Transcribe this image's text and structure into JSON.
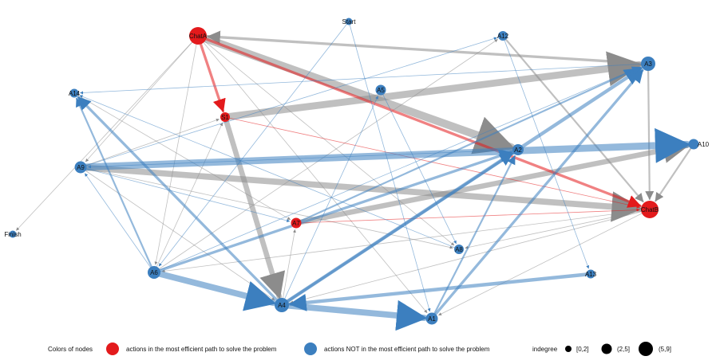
{
  "colors": {
    "efficient": "#e31a1c",
    "not_efficient": "#3c7fbf",
    "edge_grey": "#8c8c8c",
    "edge_blue": "#3c7fbf",
    "edge_red": "#e31a1c",
    "degree_marker": "#000000"
  },
  "nodes": [
    {
      "id": "Start",
      "label": "Start",
      "type": "not_efficient"
    },
    {
      "id": "ChatA",
      "label": "ChatA",
      "type": "efficient"
    },
    {
      "id": "A12",
      "label": "A12",
      "type": "not_efficient"
    },
    {
      "id": "A3",
      "label": "A3",
      "type": "not_efficient"
    },
    {
      "id": "A14",
      "label": "A14",
      "type": "not_efficient"
    },
    {
      "id": "A5",
      "label": "A5",
      "type": "not_efficient"
    },
    {
      "id": "S1",
      "label": "S1",
      "type": "efficient"
    },
    {
      "id": "A2",
      "label": "A2",
      "type": "not_efficient"
    },
    {
      "id": "A10",
      "label": "A10",
      "type": "not_efficient"
    },
    {
      "id": "A9",
      "label": "A9",
      "type": "not_efficient"
    },
    {
      "id": "ChatB",
      "label": "ChatB",
      "type": "efficient"
    },
    {
      "id": "A7",
      "label": "A7",
      "type": "efficient"
    },
    {
      "id": "Finish",
      "label": "Finish",
      "type": "not_efficient"
    },
    {
      "id": "A8",
      "label": "A8",
      "type": "not_efficient"
    },
    {
      "id": "A6",
      "label": "A6",
      "type": "not_efficient"
    },
    {
      "id": "A13",
      "label": "A13",
      "type": "not_efficient"
    },
    {
      "id": "A4",
      "label": "A4",
      "type": "not_efficient"
    },
    {
      "id": "A1",
      "label": "A1",
      "type": "not_efficient"
    }
  ],
  "edges": [
    {
      "from": "ChatA",
      "to": "A2",
      "color": "grey",
      "weight": 9
    },
    {
      "from": "S1",
      "to": "A3",
      "color": "grey",
      "weight": 8
    },
    {
      "from": "S1",
      "to": "A4",
      "color": "grey",
      "weight": 6
    },
    {
      "from": "A9",
      "to": "ChatB",
      "color": "grey",
      "weight": 7
    },
    {
      "from": "A7",
      "to": "A10",
      "color": "grey",
      "weight": 6
    },
    {
      "from": "A3",
      "to": "ChatA",
      "color": "grey",
      "weight": 3
    },
    {
      "from": "ChatB",
      "to": "A6",
      "color": "grey",
      "weight": 1
    },
    {
      "from": "ChatA",
      "to": "Finish",
      "color": "grey",
      "weight": 1
    },
    {
      "from": "A10",
      "to": "ChatB",
      "color": "grey",
      "weight": 2
    },
    {
      "from": "A3",
      "to": "ChatB",
      "color": "grey",
      "weight": 2
    },
    {
      "from": "A12",
      "to": "ChatB",
      "color": "grey",
      "weight": 2
    },
    {
      "from": "ChatA",
      "to": "A6",
      "color": "grey",
      "weight": 1
    },
    {
      "from": "ChatA",
      "to": "A8",
      "color": "grey",
      "weight": 1
    },
    {
      "from": "ChatA",
      "to": "A9",
      "color": "grey",
      "weight": 1
    },
    {
      "from": "ChatA",
      "to": "A1",
      "color": "grey",
      "weight": 1
    },
    {
      "from": "A9",
      "to": "A4",
      "color": "grey",
      "weight": 1
    },
    {
      "from": "A9",
      "to": "A8",
      "color": "grey",
      "weight": 1
    },
    {
      "from": "A6",
      "to": "S1",
      "color": "grey",
      "weight": 1
    },
    {
      "from": "ChatB",
      "to": "A8",
      "color": "grey",
      "weight": 1
    },
    {
      "from": "ChatB",
      "to": "A4",
      "color": "grey",
      "weight": 1
    },
    {
      "from": "ChatB",
      "to": "A1",
      "color": "grey",
      "weight": 1
    },
    {
      "from": "A14",
      "to": "A7",
      "color": "grey",
      "weight": 1
    },
    {
      "from": "A4",
      "to": "A7",
      "color": "grey",
      "weight": 1
    },
    {
      "from": "A6",
      "to": "A12",
      "color": "grey",
      "weight": 1
    },
    {
      "from": "A9",
      "to": "S1",
      "color": "grey",
      "weight": 1
    },
    {
      "from": "ChatA",
      "to": "S1",
      "color": "red",
      "weight": 3
    },
    {
      "from": "ChatA",
      "to": "ChatB",
      "color": "red",
      "weight": 3
    },
    {
      "from": "S1",
      "to": "ChatB",
      "color": "red",
      "weight": 1
    },
    {
      "from": "A7",
      "to": "ChatB",
      "color": "red",
      "weight": 1
    },
    {
      "from": "A9",
      "to": "A10",
      "color": "blue",
      "weight": 8
    },
    {
      "from": "A6",
      "to": "A4",
      "color": "blue",
      "weight": 7
    },
    {
      "from": "A4",
      "to": "A1",
      "color": "blue",
      "weight": 7
    },
    {
      "from": "A13",
      "to": "A4",
      "color": "blue",
      "weight": 4
    },
    {
      "from": "A4",
      "to": "A3",
      "color": "blue",
      "weight": 4
    },
    {
      "from": "A1",
      "to": "A3",
      "color": "blue",
      "weight": 3
    },
    {
      "from": "A4",
      "to": "A2",
      "color": "blue",
      "weight": 3
    },
    {
      "from": "A6",
      "to": "A2",
      "color": "blue",
      "weight": 3
    },
    {
      "from": "A1",
      "to": "A2",
      "color": "blue",
      "weight": 2
    },
    {
      "from": "A4",
      "to": "A14",
      "color": "blue",
      "weight": 3
    },
    {
      "from": "A7",
      "to": "A3",
      "color": "blue",
      "weight": 2
    },
    {
      "from": "A9",
      "to": "A7",
      "color": "blue",
      "weight": 1
    },
    {
      "from": "A6",
      "to": "A14",
      "color": "blue",
      "weight": 2
    },
    {
      "from": "A4",
      "to": "A5",
      "color": "blue",
      "weight": 1
    },
    {
      "from": "A6",
      "to": "A3",
      "color": "blue",
      "weight": 1
    },
    {
      "from": "A6",
      "to": "A9",
      "color": "blue",
      "weight": 1
    },
    {
      "from": "A12",
      "to": "A13",
      "color": "blue",
      "weight": 1
    },
    {
      "from": "Start",
      "to": "A6",
      "color": "blue",
      "weight": 1
    },
    {
      "from": "Start",
      "to": "A1",
      "color": "blue",
      "weight": 1
    },
    {
      "from": "A5",
      "to": "A8",
      "color": "blue",
      "weight": 1
    },
    {
      "from": "A3",
      "to": "A14",
      "color": "blue",
      "weight": 1
    },
    {
      "from": "A2",
      "to": "A9",
      "color": "blue",
      "weight": 1
    },
    {
      "from": "A9",
      "to": "A12",
      "color": "blue",
      "weight": 1
    },
    {
      "from": "A8",
      "to": "A14",
      "color": "blue",
      "weight": 1
    }
  ],
  "legend": {
    "colors_title": "Colors of nodes",
    "efficient_label": "actions in the most efficient path to solve the problem",
    "not_efficient_label": "actions NOT in the most efficient path to solve the problem",
    "degree_title": "indegree",
    "degree_bins": [
      "[0,2]",
      "(2,5]",
      "(5,9]"
    ]
  }
}
